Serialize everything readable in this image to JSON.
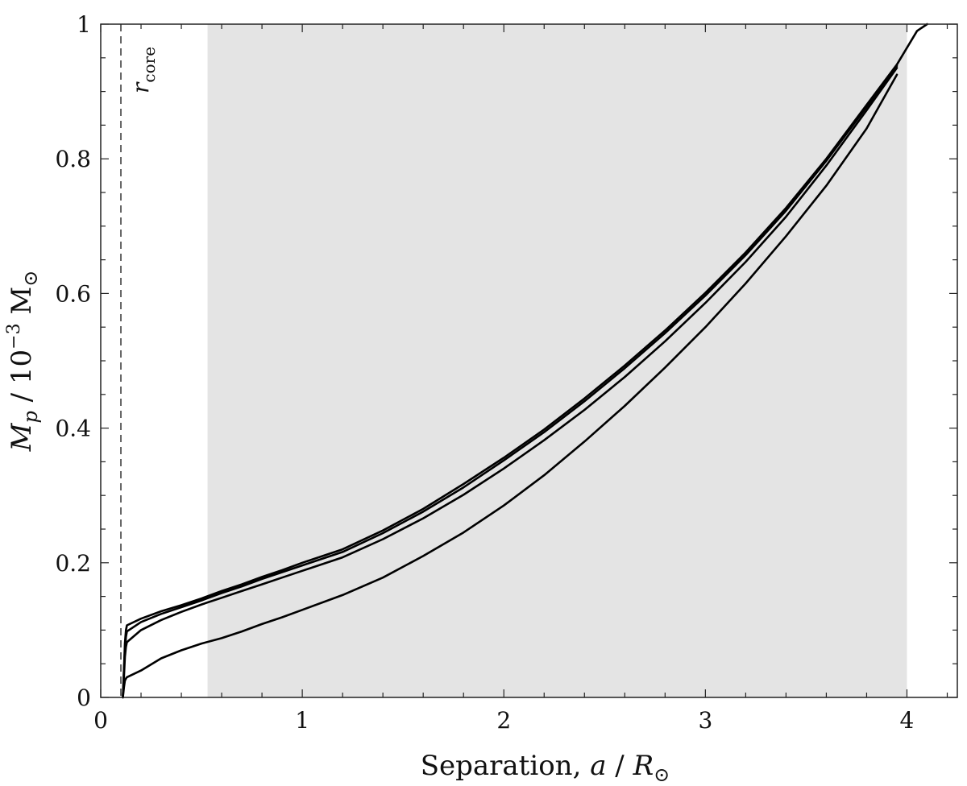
{
  "chart_data": {
    "type": "line",
    "xlabel_text": "Separation, ",
    "xlabel_var": "a",
    "xlabel_sep": " / ",
    "xlabel_unit": "R",
    "xlabel_unit_sub": "⊙",
    "ylabel_var": "M",
    "ylabel_var_sub": "p",
    "ylabel_sep": " / 10",
    "ylabel_exp": "−3",
    "ylabel_unit": " M",
    "ylabel_unit_sub": "⊙",
    "xlim": [
      0,
      4.25
    ],
    "ylim": [
      0,
      1
    ],
    "xticks": [
      0,
      1,
      2,
      3,
      4
    ],
    "yticks": [
      0,
      0.2,
      0.4,
      0.6,
      0.8,
      1
    ],
    "xtick_labels": [
      "0",
      "1",
      "2",
      "3",
      "4"
    ],
    "ytick_labels": [
      "0",
      "0.2",
      "0.4",
      "0.6",
      "0.8",
      "1"
    ],
    "shaded_region": {
      "x": [
        0.53,
        4.0
      ],
      "color": "#e4e4e4"
    },
    "vertical_line": {
      "x": 0.1,
      "label_var": "r",
      "label_sub": "core",
      "style": "dashed"
    },
    "grid": false,
    "series": [
      {
        "x": [
          0.11,
          0.115,
          0.12,
          0.125,
          0.13,
          0.2,
          0.3,
          0.4,
          0.5,
          0.6,
          0.7,
          0.8,
          0.9,
          1.0,
          1.2,
          1.4,
          1.6,
          1.8,
          2.0,
          2.2,
          2.4,
          2.6,
          2.8,
          3.0,
          3.2,
          3.4,
          3.6,
          3.8,
          3.95,
          4.05,
          4.1
        ],
        "y": [
          0.0,
          0.04,
          0.08,
          0.1,
          0.107,
          0.117,
          0.128,
          0.137,
          0.147,
          0.158,
          0.168,
          0.179,
          0.189,
          0.2,
          0.22,
          0.248,
          0.28,
          0.317,
          0.356,
          0.398,
          0.444,
          0.493,
          0.545,
          0.601,
          0.661,
          0.727,
          0.8,
          0.88,
          0.94,
          0.99,
          1.0
        ]
      },
      {
        "x": [
          0.11,
          0.115,
          0.12,
          0.125,
          0.13,
          0.2,
          0.3,
          0.4,
          0.5,
          0.6,
          0.7,
          0.8,
          0.9,
          1.0,
          1.2,
          1.4,
          1.6,
          1.8,
          2.0,
          2.2,
          2.4,
          2.6,
          2.8,
          3.0,
          3.2,
          3.4,
          3.6,
          3.8,
          3.95
        ],
        "y": [
          0.0,
          0.04,
          0.07,
          0.09,
          0.098,
          0.112,
          0.124,
          0.134,
          0.144,
          0.155,
          0.165,
          0.176,
          0.186,
          0.196,
          0.216,
          0.244,
          0.276,
          0.312,
          0.352,
          0.394,
          0.44,
          0.489,
          0.541,
          0.597,
          0.657,
          0.723,
          0.797,
          0.877,
          0.938
        ]
      },
      {
        "x": [
          0.11,
          0.115,
          0.12,
          0.125,
          0.13,
          0.2,
          0.3,
          0.4,
          0.5,
          0.6,
          0.7,
          0.8,
          0.9,
          1.0,
          1.2,
          1.4,
          1.6,
          1.8,
          2.0,
          2.2,
          2.4,
          2.6,
          2.8,
          3.0,
          3.2,
          3.4,
          3.6,
          3.8,
          3.95
        ],
        "y": [
          0.0,
          0.03,
          0.06,
          0.075,
          0.082,
          0.1,
          0.115,
          0.127,
          0.138,
          0.148,
          0.158,
          0.168,
          0.178,
          0.188,
          0.208,
          0.235,
          0.266,
          0.301,
          0.34,
          0.382,
          0.427,
          0.476,
          0.529,
          0.586,
          0.647,
          0.714,
          0.79,
          0.872,
          0.935
        ]
      },
      {
        "x": [
          0.11,
          0.115,
          0.12,
          0.125,
          0.13,
          0.2,
          0.3,
          0.4,
          0.5,
          0.6,
          0.7,
          0.8,
          0.9,
          1.0,
          1.2,
          1.4,
          1.6,
          1.8,
          2.0,
          2.2,
          2.4,
          2.6,
          2.8,
          3.0,
          3.2,
          3.4,
          3.6,
          3.8,
          3.95
        ],
        "y": [
          0.0,
          0.015,
          0.025,
          0.028,
          0.03,
          0.04,
          0.058,
          0.07,
          0.08,
          0.088,
          0.098,
          0.109,
          0.119,
          0.13,
          0.152,
          0.178,
          0.21,
          0.245,
          0.285,
          0.33,
          0.38,
          0.433,
          0.49,
          0.55,
          0.615,
          0.685,
          0.76,
          0.845,
          0.925
        ]
      }
    ]
  }
}
